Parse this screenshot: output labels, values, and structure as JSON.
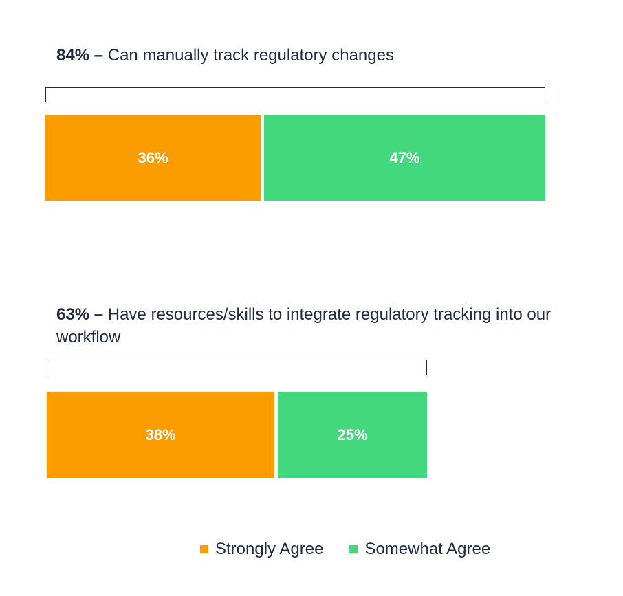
{
  "colors": {
    "strongly": "#fb9d00",
    "somewhat": "#44d87e",
    "text": "#1f2a44"
  },
  "chart_data": {
    "type": "bar",
    "orientation": "horizontal-stacked",
    "xlim": [
      0,
      100
    ],
    "series": [
      {
        "name": "Strongly Agree",
        "color": "#fb9d00"
      },
      {
        "name": "Somewhat Agree",
        "color": "#44d87e"
      }
    ],
    "groups": [
      {
        "total_label": "84%",
        "dash": "–",
        "description": "Can manually track regulatory changes",
        "values": [
          36,
          47
        ],
        "value_labels": [
          "36%",
          "47%"
        ]
      },
      {
        "total_label": "63%",
        "dash": "–",
        "description": "Have resources/skills to integrate regulatory tracking into our workflow",
        "values": [
          38,
          25
        ],
        "value_labels": [
          "38%",
          "25%"
        ]
      }
    ],
    "legend": {
      "position": "bottom",
      "items": [
        "Strongly Agree",
        "Somewhat Agree"
      ]
    }
  }
}
